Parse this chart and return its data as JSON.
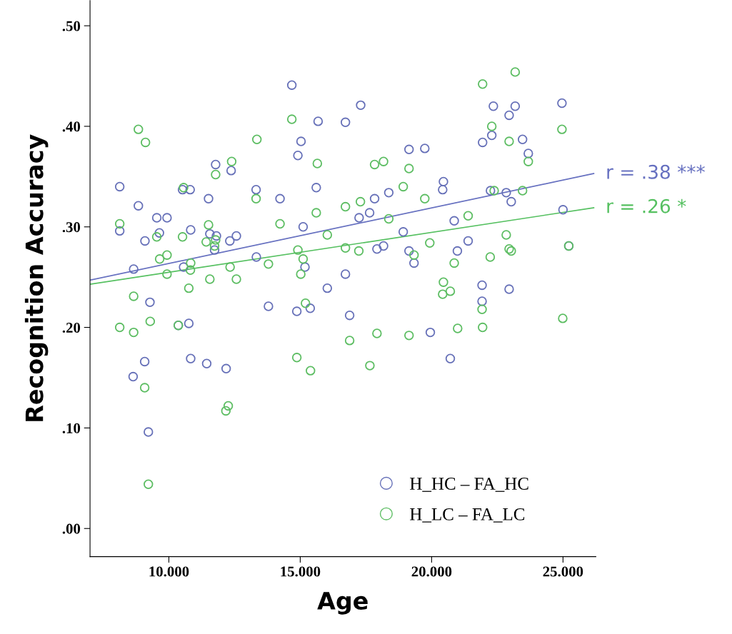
{
  "chart_data": {
    "type": "scatter",
    "xlabel": "Age",
    "ylabel": "Recognition Accuracy",
    "xlim": [
      7.0,
      26.25
    ],
    "ylim": [
      -0.028,
      0.525
    ],
    "xticks": [
      {
        "value": 10,
        "label": "10.000"
      },
      {
        "value": 15,
        "label": "15.000"
      },
      {
        "value": 20,
        "label": "20.000"
      },
      {
        "value": 25,
        "label": "25.000"
      }
    ],
    "yticks": [
      {
        "value": 0.0,
        "label": ".00"
      },
      {
        "value": 0.1,
        "label": ".10"
      },
      {
        "value": 0.2,
        "label": ".20"
      },
      {
        "value": 0.3,
        "label": ".30"
      },
      {
        "value": 0.4,
        "label": ".40"
      },
      {
        "value": 0.5,
        "label": ".50"
      }
    ],
    "grid": false,
    "legend": "bottom right",
    "marker": "circle",
    "series": [
      {
        "name": "H_HC – FA_HC",
        "color": "#6670b8",
        "x": [
          14.68,
          15.68,
          15.03,
          14.91,
          11.78,
          12.37,
          8.13,
          10.52,
          10.81,
          11.51,
          13.32,
          14.23,
          15.61,
          8.84,
          9.54,
          9.93,
          8.13,
          10.83,
          9.64,
          11.56,
          11.81,
          12.57,
          12.32,
          9.09,
          15.11,
          11.74,
          8.66,
          10.56,
          13.33,
          15.18,
          9.28,
          13.79,
          14.87,
          15.38,
          10.36,
          10.76,
          9.08,
          8.64,
          10.83,
          11.44,
          12.18,
          9.22,
          17.3,
          24.96,
          22.35,
          23.18,
          22.95,
          16.72,
          22.29,
          21.94,
          23.46,
          23.68,
          19.14,
          19.74,
          18.37,
          17.83,
          20.45,
          20.42,
          17.64,
          17.24,
          17.92,
          18.17,
          18.92,
          19.14,
          19.33,
          20.98,
          20.86,
          21.39,
          22.24,
          22.84,
          23.03,
          25.0,
          25.22,
          16.72,
          16.03,
          21.92,
          22.95,
          21.92,
          16.88,
          19.95,
          20.71
        ],
        "values": [
          0.441,
          0.405,
          0.385,
          0.371,
          0.362,
          0.356,
          0.34,
          0.337,
          0.337,
          0.328,
          0.337,
          0.328,
          0.339,
          0.321,
          0.309,
          0.309,
          0.296,
          0.297,
          0.294,
          0.293,
          0.291,
          0.291,
          0.286,
          0.286,
          0.3,
          0.277,
          0.258,
          0.26,
          0.27,
          0.26,
          0.225,
          0.221,
          0.216,
          0.219,
          0.202,
          0.204,
          0.166,
          0.151,
          0.169,
          0.164,
          0.159,
          0.096,
          0.421,
          0.423,
          0.42,
          0.42,
          0.411,
          0.404,
          0.391,
          0.384,
          0.387,
          0.373,
          0.377,
          0.378,
          0.334,
          0.328,
          0.345,
          0.337,
          0.314,
          0.309,
          0.278,
          0.281,
          0.295,
          0.276,
          0.264,
          0.276,
          0.306,
          0.286,
          0.336,
          0.334,
          0.325,
          0.317,
          0.281,
          0.253,
          0.239,
          0.242,
          0.238,
          0.226,
          0.212,
          0.195,
          0.169
        ]
      },
      {
        "name": "H_LC – FA_LC",
        "color": "#5cbd62",
        "x": [
          14.68,
          8.84,
          9.11,
          13.35,
          12.39,
          11.78,
          15.65,
          10.56,
          13.32,
          15.61,
          8.13,
          11.51,
          14.23,
          9.54,
          10.52,
          11.42,
          11.78,
          11.74,
          14.91,
          9.65,
          9.93,
          10.83,
          10.82,
          9.93,
          12.33,
          13.79,
          15.11,
          15.02,
          11.56,
          12.57,
          10.76,
          8.66,
          15.2,
          8.13,
          8.66,
          9.29,
          10.36,
          9.08,
          12.26,
          12.17,
          9.22,
          14.87,
          15.39,
          23.18,
          21.94,
          24.96,
          22.29,
          22.95,
          23.68,
          17.83,
          18.17,
          19.14,
          18.92,
          17.29,
          16.72,
          19.74,
          18.37,
          16.03,
          16.72,
          17.23,
          19.93,
          19.33,
          21.39,
          20.86,
          22.38,
          23.46,
          22.84,
          22.95,
          23.03,
          22.23,
          25.22,
          20.45,
          20.42,
          20.71,
          21.92,
          16.88,
          17.92,
          19.14,
          20.99,
          21.94,
          24.99,
          17.65
        ],
        "values": [
          0.407,
          0.397,
          0.384,
          0.387,
          0.365,
          0.352,
          0.363,
          0.339,
          0.328,
          0.314,
          0.303,
          0.302,
          0.303,
          0.29,
          0.29,
          0.285,
          0.287,
          0.281,
          0.277,
          0.268,
          0.272,
          0.264,
          0.257,
          0.253,
          0.26,
          0.263,
          0.268,
          0.253,
          0.248,
          0.248,
          0.239,
          0.231,
          0.224,
          0.2,
          0.195,
          0.206,
          0.202,
          0.14,
          0.122,
          0.117,
          0.044,
          0.17,
          0.157,
          0.454,
          0.442,
          0.397,
          0.4,
          0.385,
          0.365,
          0.362,
          0.365,
          0.358,
          0.34,
          0.325,
          0.32,
          0.328,
          0.308,
          0.292,
          0.279,
          0.276,
          0.284,
          0.272,
          0.311,
          0.264,
          0.336,
          0.336,
          0.292,
          0.278,
          0.276,
          0.27,
          0.281,
          0.245,
          0.233,
          0.236,
          0.218,
          0.187,
          0.194,
          0.192,
          0.199,
          0.2,
          0.209,
          0.162
        ]
      },
      {
        "type": "line",
        "name": "r = .38 ***",
        "color": "#6670c0",
        "marker": "none",
        "x": [
          7.0,
          26.17
        ],
        "values": [
          0.247,
          0.353
        ]
      },
      {
        "type": "line",
        "name": "r = .26 *",
        "color": "#55c060",
        "marker": "none",
        "x": [
          7.0,
          26.17
        ],
        "values": [
          0.243,
          0.319
        ]
      }
    ]
  }
}
